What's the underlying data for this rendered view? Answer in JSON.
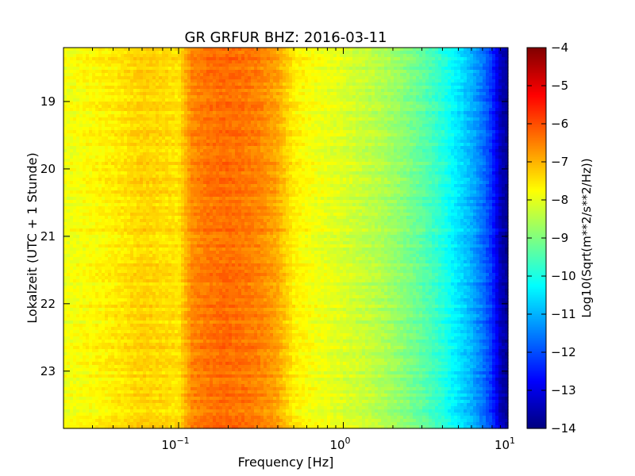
{
  "chart_data": {
    "type": "heatmap",
    "title": "GR GRFUR BHZ: 2016-03-11",
    "xlabel": "Frequency [Hz]",
    "ylabel": "Lokalzeit (UTC + 1 Stunde)",
    "x_scale": "log",
    "xlim": [
      0.02,
      10
    ],
    "x_ticks": [
      {
        "value": 0.1,
        "base": "10",
        "exp": "−1"
      },
      {
        "value": 1,
        "base": "10",
        "exp": "0"
      },
      {
        "value": 10,
        "base": "10",
        "exp": "1"
      }
    ],
    "ylim": [
      18.2,
      23.85
    ],
    "y_ticks": [
      "19",
      "20",
      "21",
      "22",
      "23"
    ],
    "y_inverted": true,
    "colorbar": {
      "label": "Log10(Sqrt(m**2/s**2/Hz))",
      "colormap": "jet",
      "range": [
        -14,
        -4
      ],
      "ticks": [
        "−4",
        "−5",
        "−6",
        "−7",
        "−8",
        "−9",
        "−10",
        "−11",
        "−12",
        "−13",
        "−14"
      ]
    },
    "spectrum_profile": {
      "frequency_hz": [
        0.02,
        0.04,
        0.06,
        0.08,
        0.1,
        0.12,
        0.15,
        0.2,
        0.3,
        0.4,
        0.5,
        0.7,
        1.0,
        1.5,
        2.0,
        3.0,
        4.0,
        5.0,
        6.0,
        7.0,
        8.0,
        9.0,
        10.0
      ],
      "level_log10": [
        -7.9,
        -7.6,
        -7.3,
        -7.4,
        -7.5,
        -6.6,
        -6.4,
        -6.3,
        -6.5,
        -6.9,
        -7.6,
        -7.9,
        -8.1,
        -8.4,
        -8.7,
        -9.3,
        -9.9,
        -10.5,
        -11.0,
        -11.6,
        -12.3,
        -13.4,
        -13.8
      ]
    }
  }
}
